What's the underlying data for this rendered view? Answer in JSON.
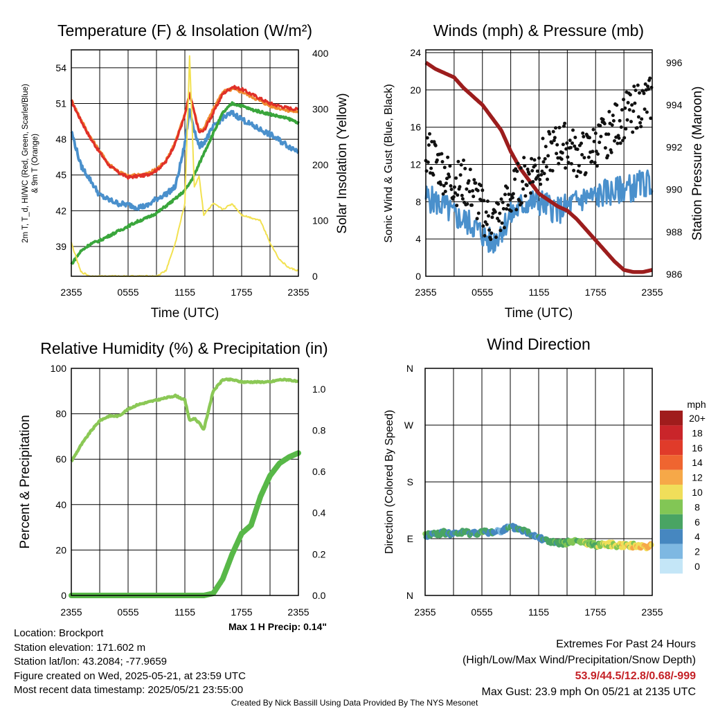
{
  "chart_data": [
    {
      "type": "line",
      "title": "Temperature (F) & Insolation (W/m²)",
      "xlabel": "Time (UTC)",
      "ylabel_line1": "2m T, T_d, HI/WC (Red, Green, Scarlet/Blue)",
      "ylabel_line2": "& 9m T (Orange)",
      "y2label": "Solar Insolation (Yellow)",
      "xticks": [
        "2355",
        "0555",
        "1155",
        "1755",
        "2355"
      ],
      "ylim": [
        36.5,
        55.5
      ],
      "yticks": [
        39,
        42,
        45,
        48,
        51,
        54
      ],
      "y2lim": [
        0,
        406
      ],
      "y2ticks": [
        0,
        100,
        200,
        300,
        400
      ],
      "x_hours": [
        0,
        1,
        2,
        3,
        4,
        5,
        6,
        7,
        8,
        9,
        10,
        11,
        12,
        12.5,
        13,
        13.5,
        14,
        15,
        16,
        17,
        18,
        19,
        20,
        21,
        22,
        23,
        24
      ],
      "series": [
        {
          "color": "#e03028",
          "values": [
            51.2,
            49.6,
            48.1,
            46.9,
            45.8,
            45.2,
            44.8,
            44.9,
            45.0,
            45.4,
            46.1,
            47.7,
            50.0,
            51.8,
            50.2,
            48.6,
            48.7,
            50.2,
            51.8,
            52.4,
            52.2,
            51.8,
            51.4,
            51.0,
            50.8,
            50.6,
            50.5
          ]
        },
        {
          "color": "#f08a30",
          "values": [
            51.3,
            49.7,
            48.2,
            47.0,
            45.9,
            45.3,
            44.9,
            45.0,
            45.1,
            45.5,
            46.2,
            47.8,
            50.1,
            51.9,
            50.3,
            48.7,
            48.9,
            50.5,
            52.0,
            52.2,
            52.0,
            51.6,
            51.2,
            50.8,
            50.6,
            50.4,
            50.3
          ]
        },
        {
          "color": "#4a90cc",
          "values": [
            48.7,
            45.8,
            44.6,
            43.3,
            42.9,
            42.6,
            42.5,
            42.3,
            42.4,
            43.0,
            43.4,
            44.0,
            47.6,
            50.5,
            48.8,
            47.4,
            47.7,
            49.0,
            49.8,
            50.2,
            49.7,
            49.2,
            48.8,
            48.4,
            47.9,
            47.4,
            47.0
          ]
        },
        {
          "color": "#3aa63c",
          "values": [
            37.5,
            38.6,
            39.2,
            39.5,
            39.9,
            40.3,
            40.7,
            41.1,
            41.4,
            41.8,
            42.4,
            43.0,
            43.7,
            44.3,
            45.0,
            45.9,
            46.8,
            48.5,
            50.2,
            51.0,
            50.8,
            50.5,
            50.3,
            50.1,
            49.9,
            49.7,
            49.4
          ]
        },
        {
          "color": "#f2e150",
          "axis": "right",
          "values": [
            60,
            8,
            0,
            0,
            0,
            0,
            0,
            0,
            0,
            0,
            10,
            60,
            130,
            395,
            160,
            180,
            110,
            130,
            120,
            130,
            110,
            105,
            100,
            60,
            30,
            15,
            10
          ]
        }
      ]
    },
    {
      "type": "scatter",
      "title": "Winds (mph) & Pressure (mb)",
      "xlabel": "Time (UTC)",
      "ylabel": "Sonic Wind & Gust (Blue, Black)",
      "y2label": "Station Pressure (Maroon)",
      "xticks": [
        "2355",
        "0555",
        "1155",
        "1755",
        "2355"
      ],
      "ylim": [
        0,
        24.3
      ],
      "yticks": [
        0,
        4,
        8,
        12,
        16,
        20,
        24
      ],
      "y2lim": [
        985.9,
        996.6
      ],
      "y2ticks": [
        986,
        988,
        990,
        992,
        994,
        996
      ],
      "x_hours": [
        0,
        1,
        2,
        3,
        4,
        5,
        6,
        7,
        8,
        9,
        10,
        11,
        12,
        13,
        14,
        15,
        16,
        17,
        18,
        19,
        20,
        21,
        22,
        23,
        24
      ],
      "series": [
        {
          "name": "Sonic Wind",
          "color": "#4a90cc",
          "values": [
            8.5,
            8,
            7.5,
            6.5,
            6,
            5.5,
            4.5,
            3.5,
            5,
            6.5,
            7.5,
            8,
            8,
            7.5,
            7,
            7.5,
            8,
            8.5,
            8.5,
            9,
            9,
            9.5,
            9.5,
            10,
            10
          ]
        },
        {
          "name": "Gust",
          "color": "#111111",
          "values": [
            13.5,
            12.5,
            11,
            10,
            10,
            9,
            7,
            5.5,
            6.5,
            8.5,
            10,
            11,
            12,
            13,
            14,
            14,
            13,
            13,
            14,
            15,
            16,
            17,
            18,
            18.5,
            19
          ]
        },
        {
          "name": "Station Pressure",
          "color": "#9c1d1d",
          "axis": "right",
          "values": [
            996,
            995.7,
            995.5,
            995.3,
            994.8,
            994.4,
            994,
            993.4,
            992.8,
            991.8,
            991,
            990.4,
            989.8,
            989.5,
            989.2,
            989,
            988.6,
            988.1,
            987.6,
            987.1,
            986.6,
            986.2,
            986.1,
            986.1,
            986.2
          ]
        }
      ]
    },
    {
      "type": "line",
      "title": "Relative Humidity (%) & Precipitation (in)",
      "xlabel": "",
      "ylabel": "Percent & Precipitation",
      "xticks": [
        "2355",
        "0555",
        "1155",
        "1755",
        "2355"
      ],
      "ylim": [
        0,
        100
      ],
      "yticks": [
        0,
        20,
        40,
        60,
        80,
        100
      ],
      "y2lim": [
        0,
        1.1
      ],
      "y2ticks": [
        "0.0",
        "0.2",
        "0.4",
        "0.6",
        "0.8",
        "1.0"
      ],
      "x_hours": [
        0,
        1,
        2,
        3,
        4,
        5,
        6,
        7,
        8,
        9,
        10,
        11,
        12,
        12.5,
        13,
        13.5,
        14,
        15,
        16,
        17,
        18,
        19,
        20,
        21,
        22,
        23,
        24
      ],
      "series": [
        {
          "color": "#8bc856",
          "values": [
            59,
            66,
            72,
            77,
            79,
            79,
            82,
            84,
            85,
            86,
            87,
            88,
            86,
            77,
            78,
            76,
            73,
            90,
            95,
            95,
            94,
            94,
            94,
            94,
            95,
            95,
            94
          ]
        },
        {
          "color": "#58b848",
          "axis": "right",
          "values": [
            0,
            0,
            0,
            0,
            0,
            0,
            0,
            0,
            0,
            0,
            0,
            0,
            0,
            0,
            0,
            0,
            0,
            0.01,
            0.08,
            0.2,
            0.3,
            0.34,
            0.48,
            0.58,
            0.64,
            0.67,
            0.69
          ]
        }
      ],
      "annotation": "Max 1 H Precip: 0.14\""
    },
    {
      "type": "scatter",
      "title": "Wind Direction",
      "ylabel": "Direction (Colored By Speed)",
      "xticks": [
        "2355",
        "0555",
        "1155",
        "1755",
        "2355"
      ],
      "yticks": [
        "N",
        "E",
        "S",
        "W",
        "N"
      ],
      "ylim_deg": [
        0,
        360
      ],
      "x_hours": [
        0,
        1,
        2,
        3,
        4,
        5,
        6,
        7,
        8,
        9,
        10,
        11,
        12,
        13,
        14,
        15,
        16,
        17,
        18,
        19,
        20,
        21,
        22,
        23,
        24
      ],
      "direction_deg": [
        95,
        98,
        99,
        97,
        100,
        99,
        100,
        100,
        103,
        108,
        105,
        99,
        93,
        86,
        82,
        84,
        86,
        83,
        80,
        82,
        80,
        80,
        79,
        78,
        78
      ],
      "speed_mph": [
        6,
        5,
        6,
        4,
        6,
        5,
        6,
        4,
        3,
        4,
        5,
        5,
        4,
        6,
        6,
        7,
        7,
        8,
        7,
        9,
        9,
        10,
        10,
        11,
        10
      ],
      "legend_title": "mph",
      "legend_labels": [
        "20+",
        "18",
        "16",
        "14",
        "12",
        "10",
        "8",
        "6",
        "4",
        "2",
        "0"
      ],
      "legend_colors": [
        "#a01c1c",
        "#c9252a",
        "#e03b2a",
        "#ef6530",
        "#f6a848",
        "#f0de5a",
        "#82c655",
        "#49a463",
        "#4687c0",
        "#7eb8e2",
        "#c4e6f7"
      ]
    }
  ],
  "station": {
    "location": "Location: Brockport",
    "elevation": "Station elevation: 171.602 m",
    "latlon": "Station lat/lon: 43.2084; -77.9659",
    "created": "Figure created on Wed, 2025-05-21, at 23:59 UTC",
    "recent": "Most recent data timestamp: 2025/05/21 23:55:00"
  },
  "extremes": {
    "line1": "Extremes For Past 24 Hours",
    "line2": "(High/Low/Max Wind/Precipitation/Snow Depth)",
    "values": "53.9/44.5/12.8/0.68/-999",
    "gust": "Max Gust: 23.9 mph On 05/21 at 2135 UTC"
  },
  "credit": "Created By Nick Bassill Using Data Provided By The NYS Mesonet",
  "colors": {
    "precip_note": "#2e9a2e",
    "extremes_values": "#c42026",
    "credit": "#999999"
  }
}
